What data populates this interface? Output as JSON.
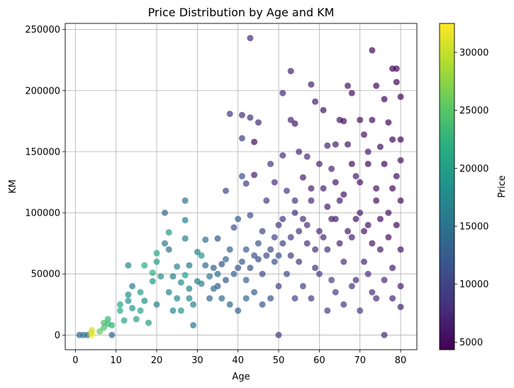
{
  "chart_data": {
    "type": "scatter",
    "title": "Price Distribution by Age and KM",
    "xlabel": "Age",
    "ylabel": "KM",
    "xlim": [
      -2.5,
      84
    ],
    "ylim": [
      -12000,
      255000
    ],
    "x_ticks": [
      0,
      10,
      20,
      30,
      40,
      50,
      60,
      70,
      80
    ],
    "y_ticks": [
      0,
      50000,
      100000,
      150000,
      200000,
      250000
    ],
    "x_tick_labels": [
      "0",
      "10",
      "20",
      "30",
      "40",
      "50",
      "60",
      "70",
      "80"
    ],
    "y_tick_labels": [
      "0",
      "50000",
      "100000",
      "150000",
      "200000",
      "250000"
    ],
    "grid": true,
    "colormap": "viridis",
    "color_variable": "Price",
    "colorbar": {
      "label": "Price",
      "range": [
        4350,
        32500
      ],
      "ticks": [
        5000,
        10000,
        15000,
        20000,
        25000,
        30000
      ],
      "tick_labels": [
        "5000",
        "10000",
        "15000",
        "20000",
        "25000",
        "30000"
      ]
    },
    "point_alpha": 0.7,
    "points": [
      [
        1,
        0,
        13500
      ],
      [
        2,
        0,
        14500
      ],
      [
        3,
        0,
        15000
      ],
      [
        4,
        0,
        32500
      ],
      [
        4,
        2000,
        31000
      ],
      [
        4,
        4000,
        30500
      ],
      [
        6,
        3000,
        25500
      ],
      [
        7,
        6000,
        24500
      ],
      [
        7,
        10000,
        24000
      ],
      [
        8,
        9000,
        23500
      ],
      [
        8,
        13000,
        23000
      ],
      [
        9,
        0,
        13500
      ],
      [
        9,
        8000,
        22500
      ],
      [
        11,
        25000,
        21000
      ],
      [
        11,
        20000,
        21500
      ],
      [
        12,
        12000,
        20500
      ],
      [
        13,
        33000,
        17500
      ],
      [
        13,
        28000,
        18500
      ],
      [
        13,
        57000,
        16500
      ],
      [
        14,
        40000,
        16000
      ],
      [
        14,
        22000,
        19000
      ],
      [
        15,
        13000,
        20000
      ],
      [
        16,
        35000,
        19500
      ],
      [
        16,
        20000,
        20000
      ],
      [
        17,
        57000,
        21500
      ],
      [
        17,
        28000,
        18500
      ],
      [
        18,
        10000,
        20000
      ],
      [
        19,
        51000,
        22000
      ],
      [
        19,
        44000,
        19000
      ],
      [
        20,
        67000,
        21000
      ],
      [
        20,
        60000,
        19500
      ],
      [
        20,
        25000,
        16000
      ],
      [
        21,
        48000,
        17500
      ],
      [
        22,
        100000,
        13500
      ],
      [
        22,
        75000,
        16000
      ],
      [
        23,
        84000,
        19500
      ],
      [
        23,
        70000,
        14500
      ],
      [
        23,
        35000,
        17000
      ],
      [
        24,
        48000,
        16000
      ],
      [
        24,
        20000,
        17500
      ],
      [
        25,
        56000,
        17000
      ],
      [
        26,
        43000,
        18000
      ],
      [
        27,
        110000,
        15000
      ],
      [
        27,
        94000,
        16500
      ],
      [
        27,
        79000,
        16000
      ],
      [
        27,
        49000,
        20000
      ],
      [
        28,
        57000,
        15500
      ],
      [
        28,
        30000,
        17500
      ],
      [
        29,
        8000,
        15500
      ],
      [
        30,
        68000,
        17000
      ],
      [
        30,
        44000,
        16500
      ],
      [
        31,
        65000,
        19000
      ],
      [
        32,
        78000,
        14500
      ],
      [
        32,
        57000,
        14000
      ],
      [
        33,
        30000,
        13500
      ],
      [
        34,
        55000,
        13000
      ],
      [
        35,
        79000,
        12000
      ],
      [
        35,
        40000,
        12500
      ],
      [
        36,
        58000,
        11000
      ],
      [
        37,
        118000,
        10500
      ],
      [
        37,
        45000,
        12000
      ],
      [
        38,
        181000,
        8500
      ],
      [
        38,
        70000,
        13500
      ],
      [
        39,
        88000,
        11000
      ],
      [
        40,
        95000,
        12500
      ],
      [
        40,
        55000,
        11500
      ],
      [
        41,
        180000,
        8000
      ],
      [
        41,
        161000,
        9500
      ],
      [
        41,
        130000,
        11000
      ],
      [
        42,
        124000,
        9500
      ],
      [
        42,
        70000,
        12500
      ],
      [
        42,
        30000,
        13500
      ],
      [
        43,
        243000,
        7500
      ],
      [
        43,
        178000,
        8000
      ],
      [
        43,
        98000,
        11000
      ],
      [
        44,
        131000,
        6500
      ],
      [
        44,
        158000,
        5000
      ],
      [
        45,
        174000,
        7500
      ],
      [
        45,
        75000,
        11500
      ],
      [
        46,
        50000,
        10000
      ],
      [
        47,
        110000,
        9500
      ],
      [
        48,
        140000,
        8500
      ],
      [
        48,
        70000,
        10500
      ],
      [
        49,
        125000,
        8000
      ],
      [
        49,
        60000,
        11000
      ],
      [
        50,
        0,
        8500
      ],
      [
        50,
        40000,
        10000
      ],
      [
        51,
        198000,
        7500
      ],
      [
        51,
        147000,
        8000
      ],
      [
        51,
        95000,
        9000
      ],
      [
        52,
        118000,
        9500
      ],
      [
        53,
        216000,
        7000
      ],
      [
        53,
        176000,
        7500
      ],
      [
        53,
        80000,
        9000
      ],
      [
        54,
        173000,
        6000
      ],
      [
        54,
        110000,
        8500
      ],
      [
        55,
        150000,
        7500
      ],
      [
        55,
        60000,
        8500
      ],
      [
        56,
        129000,
        7000
      ],
      [
        56,
        95000,
        8000
      ],
      [
        57,
        146000,
        7500
      ],
      [
        57,
        75000,
        8000
      ],
      [
        58,
        205000,
        6500
      ],
      [
        58,
        110000,
        7500
      ],
      [
        59,
        191000,
        6500
      ],
      [
        59,
        55000,
        8500
      ],
      [
        60,
        140000,
        7000
      ],
      [
        60,
        85000,
        7500
      ],
      [
        61,
        184000,
        6000
      ],
      [
        61,
        120000,
        7000
      ],
      [
        62,
        155000,
        7000
      ],
      [
        62,
        70000,
        8000
      ],
      [
        63,
        136000,
        7000
      ],
      [
        63,
        45000,
        9500
      ],
      [
        64,
        156000,
        6500
      ],
      [
        64,
        95000,
        7000
      ],
      [
        65,
        176000,
        6000
      ],
      [
        65,
        110000,
        6500
      ],
      [
        66,
        175000,
        5500
      ],
      [
        66,
        60000,
        8000
      ],
      [
        67,
        204000,
        6000
      ],
      [
        67,
        156000,
        6000
      ],
      [
        68,
        198000,
        5500
      ],
      [
        68,
        80000,
        7000
      ],
      [
        69,
        130000,
        6500
      ],
      [
        69,
        45000,
        8000
      ],
      [
        70,
        176000,
        5500
      ],
      [
        70,
        100000,
        6500
      ],
      [
        71,
        164000,
        5500
      ],
      [
        71,
        60000,
        7000
      ],
      [
        72,
        150000,
        6500
      ],
      [
        72,
        90000,
        6000
      ],
      [
        73,
        233000,
        5000
      ],
      [
        73,
        176000,
        5500
      ],
      [
        73,
        35000,
        8000
      ],
      [
        74,
        204000,
        4800
      ],
      [
        74,
        120000,
        6000
      ],
      [
        75,
        154000,
        5500
      ],
      [
        75,
        70000,
        6500
      ],
      [
        76,
        193000,
        5000
      ],
      [
        76,
        0,
        7500
      ],
      [
        77,
        174000,
        5000
      ],
      [
        77,
        100000,
        5500
      ],
      [
        78,
        218000,
        4600
      ],
      [
        78,
        160000,
        5000
      ],
      [
        78,
        55000,
        6500
      ],
      [
        79,
        218000,
        4500
      ],
      [
        79,
        207000,
        4700
      ],
      [
        79,
        130000,
        5500
      ],
      [
        80,
        195000,
        4600
      ],
      [
        80,
        143000,
        5500
      ],
      [
        80,
        160000,
        5000
      ],
      [
        80,
        110000,
        5500
      ],
      [
        80,
        70000,
        6000
      ],
      [
        80,
        40000,
        6500
      ],
      [
        80,
        23000,
        7000
      ],
      [
        34,
        38000,
        14500
      ],
      [
        36,
        30000,
        14000
      ],
      [
        38,
        25000,
        13500
      ],
      [
        40,
        20000,
        12500
      ],
      [
        42,
        45000,
        13000
      ],
      [
        44,
        35000,
        12500
      ],
      [
        46,
        25000,
        12000
      ],
      [
        48,
        30000,
        11500
      ],
      [
        50,
        65000,
        11000
      ],
      [
        52,
        50000,
        10500
      ],
      [
        54,
        30000,
        10000
      ],
      [
        56,
        40000,
        10000
      ],
      [
        58,
        30000,
        9500
      ],
      [
        60,
        50000,
        9000
      ],
      [
        62,
        20000,
        9500
      ],
      [
        64,
        35000,
        9000
      ],
      [
        66,
        25000,
        9000
      ],
      [
        68,
        40000,
        8500
      ],
      [
        70,
        20000,
        9000
      ],
      [
        72,
        50000,
        8000
      ],
      [
        74,
        30000,
        8000
      ],
      [
        76,
        45000,
        7500
      ],
      [
        78,
        30000,
        7500
      ],
      [
        25,
        30000,
        18000
      ],
      [
        26,
        20000,
        19000
      ],
      [
        28,
        38000,
        17000
      ],
      [
        29,
        25000,
        16500
      ],
      [
        31,
        42000,
        16000
      ],
      [
        33,
        48000,
        15000
      ],
      [
        35,
        50000,
        14500
      ],
      [
        37,
        62000,
        13500
      ],
      [
        39,
        50000,
        13000
      ],
      [
        41,
        60000,
        12000
      ],
      [
        43,
        55000,
        11500
      ],
      [
        45,
        62000,
        11000
      ],
      [
        47,
        65000,
        10500
      ],
      [
        49,
        80000,
        10000
      ],
      [
        51,
        75000,
        9500
      ],
      [
        53,
        65000,
        9000
      ],
      [
        55,
        85000,
        8500
      ],
      [
        57,
        90000,
        8000
      ],
      [
        59,
        70000,
        8000
      ],
      [
        61,
        80000,
        7500
      ],
      [
        63,
        95000,
        7000
      ],
      [
        65,
        75000,
        7000
      ],
      [
        67,
        85000,
        6500
      ],
      [
        69,
        95000,
        6000
      ],
      [
        71,
        85000,
        6000
      ],
      [
        73,
        75000,
        6000
      ],
      [
        75,
        95000,
        5500
      ],
      [
        77,
        80000,
        5500
      ],
      [
        79,
        90000,
        5000
      ],
      [
        62,
        105000,
        6500
      ],
      [
        66,
        115000,
        6000
      ],
      [
        70,
        125000,
        5500
      ],
      [
        74,
        110000,
        5500
      ],
      [
        78,
        120000,
        5000
      ],
      [
        58,
        120000,
        7000
      ],
      [
        54,
        100000,
        8000
      ],
      [
        50,
        90000,
        9000
      ],
      [
        46,
        85000,
        10000
      ],
      [
        44,
        65000,
        11000
      ],
      [
        68,
        140000,
        5500
      ],
      [
        72,
        140000,
        5200
      ],
      [
        76,
        140000,
        5000
      ],
      [
        64,
        125000,
        6200
      ]
    ]
  }
}
